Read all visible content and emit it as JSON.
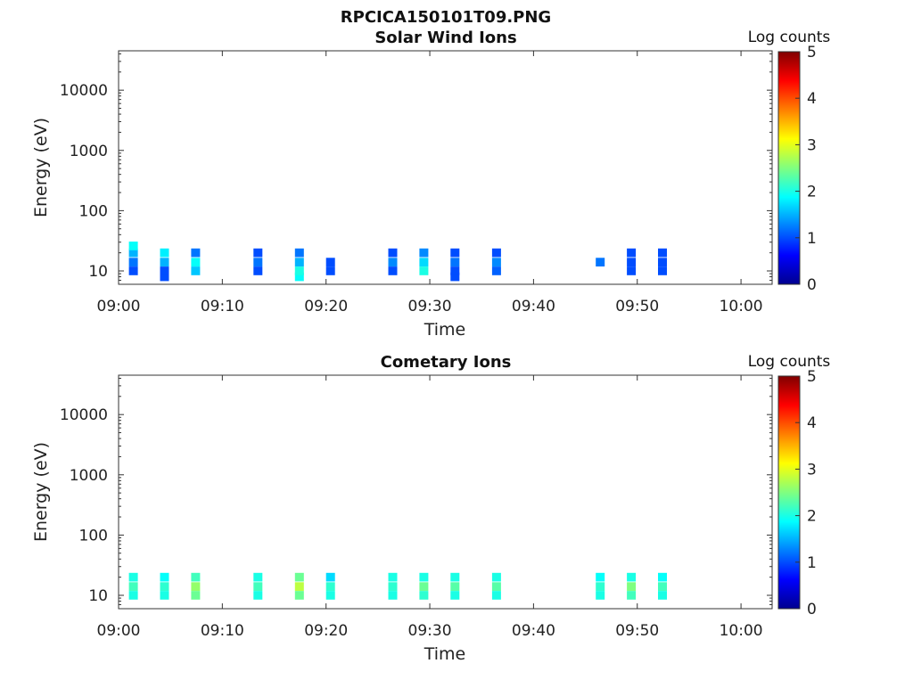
{
  "page_title": "RPCICA150101T09.PNG",
  "colorbar": {
    "label": "Log counts",
    "ticks": [
      "0",
      "1",
      "2",
      "3",
      "4",
      "5"
    ],
    "range": [
      0,
      5
    ]
  },
  "chart_data": [
    {
      "type": "heatmap",
      "title": "Solar Wind Ions",
      "xlabel": "Time",
      "ylabel": "Energy (eV)",
      "y_scale": "log",
      "x_ticks": [
        "09:00",
        "09:10",
        "09:20",
        "09:30",
        "09:40",
        "09:50",
        "10:00"
      ],
      "y_ticks": [
        "10",
        "100",
        "1000",
        "10000"
      ],
      "xlim": [
        "09:00",
        "10:03"
      ],
      "ylim": [
        6,
        45000
      ],
      "bursts_start_times": [
        "09:01",
        "09:04",
        "09:07",
        "09:13",
        "09:17",
        "09:20",
        "09:26",
        "09:29",
        "09:32",
        "09:36",
        "09:46",
        "09:49",
        "09:52"
      ],
      "cells": [
        {
          "t": "09:01",
          "e": 10,
          "v": 1
        },
        {
          "t": "09:01",
          "e": 14,
          "v": 1.2
        },
        {
          "t": "09:01",
          "e": 20,
          "v": 1.5
        },
        {
          "t": "09:01",
          "e": 26,
          "v": 1.9
        },
        {
          "t": "09:04",
          "e": 8,
          "v": 1
        },
        {
          "t": "09:04",
          "e": 10,
          "v": 1
        },
        {
          "t": "09:04",
          "e": 14,
          "v": 1.5
        },
        {
          "t": "09:04",
          "e": 20,
          "v": 1.8
        },
        {
          "t": "09:07",
          "e": 10,
          "v": 1.6
        },
        {
          "t": "09:07",
          "e": 14,
          "v": 1.9
        },
        {
          "t": "09:07",
          "e": 20,
          "v": 1.2
        },
        {
          "t": "09:13",
          "e": 10,
          "v": 1
        },
        {
          "t": "09:13",
          "e": 14,
          "v": 1.2
        },
        {
          "t": "09:13",
          "e": 20,
          "v": 1
        },
        {
          "t": "09:17",
          "e": 8,
          "v": 1.9
        },
        {
          "t": "09:17",
          "e": 10,
          "v": 2
        },
        {
          "t": "09:17",
          "e": 14,
          "v": 1.5
        },
        {
          "t": "09:17",
          "e": 20,
          "v": 1.2
        },
        {
          "t": "09:20",
          "e": 10,
          "v": 1
        },
        {
          "t": "09:20",
          "e": 14,
          "v": 1
        },
        {
          "t": "09:26",
          "e": 10,
          "v": 1
        },
        {
          "t": "09:26",
          "e": 14,
          "v": 1.3
        },
        {
          "t": "09:26",
          "e": 20,
          "v": 1
        },
        {
          "t": "09:29",
          "e": 10,
          "v": 2
        },
        {
          "t": "09:29",
          "e": 14,
          "v": 1.7
        },
        {
          "t": "09:29",
          "e": 20,
          "v": 1.3
        },
        {
          "t": "09:32",
          "e": 8,
          "v": 1
        },
        {
          "t": "09:32",
          "e": 10,
          "v": 1
        },
        {
          "t": "09:32",
          "e": 14,
          "v": 1.2
        },
        {
          "t": "09:32",
          "e": 20,
          "v": 1
        },
        {
          "t": "09:36",
          "e": 10,
          "v": 1.1
        },
        {
          "t": "09:36",
          "e": 14,
          "v": 1.3
        },
        {
          "t": "09:36",
          "e": 20,
          "v": 1
        },
        {
          "t": "09:46",
          "e": 14,
          "v": 1.2
        },
        {
          "t": "09:49",
          "e": 10,
          "v": 1
        },
        {
          "t": "09:49",
          "e": 14,
          "v": 1
        },
        {
          "t": "09:49",
          "e": 20,
          "v": 1
        },
        {
          "t": "09:52",
          "e": 10,
          "v": 1
        },
        {
          "t": "09:52",
          "e": 14,
          "v": 1
        },
        {
          "t": "09:52",
          "e": 20,
          "v": 1
        }
      ]
    },
    {
      "type": "heatmap",
      "title": "Cometary Ions",
      "xlabel": "Time",
      "ylabel": "Energy (eV)",
      "y_scale": "log",
      "x_ticks": [
        "09:00",
        "09:10",
        "09:20",
        "09:30",
        "09:40",
        "09:50",
        "10:00"
      ],
      "y_ticks": [
        "10",
        "100",
        "1000",
        "10000"
      ],
      "xlim": [
        "09:00",
        "10:03"
      ],
      "ylim": [
        6,
        45000
      ],
      "bursts_start_times": [
        "09:01",
        "09:04",
        "09:07",
        "09:13",
        "09:17",
        "09:20",
        "09:26",
        "09:29",
        "09:32",
        "09:36",
        "09:46",
        "09:49",
        "09:52"
      ],
      "cells": [
        {
          "t": "09:01",
          "e": 10,
          "v": 2
        },
        {
          "t": "09:01",
          "e": 14,
          "v": 2.2
        },
        {
          "t": "09:01",
          "e": 20,
          "v": 2
        },
        {
          "t": "09:04",
          "e": 10,
          "v": 2
        },
        {
          "t": "09:04",
          "e": 14,
          "v": 2.1
        },
        {
          "t": "09:04",
          "e": 20,
          "v": 1.9
        },
        {
          "t": "09:07",
          "e": 10,
          "v": 2.4
        },
        {
          "t": "09:07",
          "e": 14,
          "v": 2.6
        },
        {
          "t": "09:07",
          "e": 20,
          "v": 2.2
        },
        {
          "t": "09:13",
          "e": 10,
          "v": 2
        },
        {
          "t": "09:13",
          "e": 14,
          "v": 2.2
        },
        {
          "t": "09:13",
          "e": 20,
          "v": 2
        },
        {
          "t": "09:17",
          "e": 10,
          "v": 2.4
        },
        {
          "t": "09:17",
          "e": 14,
          "v": 2.8
        },
        {
          "t": "09:17",
          "e": 20,
          "v": 2.4
        },
        {
          "t": "09:20",
          "e": 10,
          "v": 2
        },
        {
          "t": "09:20",
          "e": 14,
          "v": 2.1
        },
        {
          "t": "09:20",
          "e": 20,
          "v": 1.7
        },
        {
          "t": "09:26",
          "e": 10,
          "v": 2
        },
        {
          "t": "09:26",
          "e": 14,
          "v": 2.1
        },
        {
          "t": "09:26",
          "e": 20,
          "v": 2
        },
        {
          "t": "09:29",
          "e": 10,
          "v": 2.1
        },
        {
          "t": "09:29",
          "e": 14,
          "v": 2.4
        },
        {
          "t": "09:29",
          "e": 20,
          "v": 2
        },
        {
          "t": "09:32",
          "e": 10,
          "v": 2
        },
        {
          "t": "09:32",
          "e": 14,
          "v": 2.3
        },
        {
          "t": "09:32",
          "e": 20,
          "v": 2
        },
        {
          "t": "09:36",
          "e": 10,
          "v": 2
        },
        {
          "t": "09:36",
          "e": 14,
          "v": 2.3
        },
        {
          "t": "09:36",
          "e": 20,
          "v": 2
        },
        {
          "t": "09:46",
          "e": 10,
          "v": 2
        },
        {
          "t": "09:46",
          "e": 14,
          "v": 2.1
        },
        {
          "t": "09:46",
          "e": 20,
          "v": 1.9
        },
        {
          "t": "09:49",
          "e": 10,
          "v": 2.2
        },
        {
          "t": "09:49",
          "e": 14,
          "v": 2.5
        },
        {
          "t": "09:49",
          "e": 20,
          "v": 2
        },
        {
          "t": "09:52",
          "e": 10,
          "v": 2
        },
        {
          "t": "09:52",
          "e": 14,
          "v": 2.2
        },
        {
          "t": "09:52",
          "e": 20,
          "v": 1.9
        }
      ]
    }
  ]
}
